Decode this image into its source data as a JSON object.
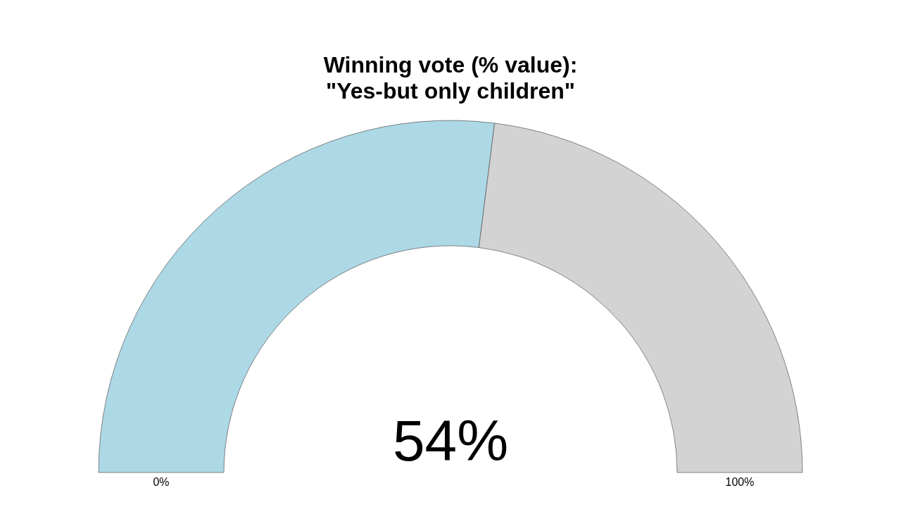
{
  "chart_data": {
    "type": "donut",
    "title": "Winning vote (% value):\n\"Yes-but only children\"",
    "categories": [
      null,
      null
    ],
    "values": [
      54,
      46
    ],
    "colors": [
      "#add8e6",
      "#d3d3d3"
    ],
    "value_labels": [
      "54%",
      null
    ],
    "annotations": [
      "0%",
      "100%"
    ]
  }
}
